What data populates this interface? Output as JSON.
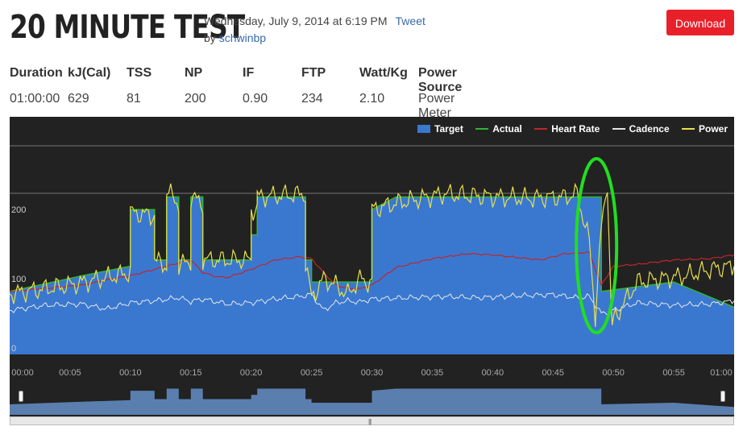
{
  "header": {
    "title": "20 MINUTE TEST",
    "date": "Wednesday, July 9, 2014 at 6:19 PM",
    "tweet": "Tweet",
    "by": "by ",
    "author": "schwinbp",
    "download": "Download"
  },
  "stats": {
    "headers": [
      "Duration",
      "kJ(Cal)",
      "TSS",
      "NP",
      "IF",
      "FTP",
      "Watt/Kg",
      "Power Source"
    ],
    "values": [
      "01:00:00",
      "629",
      "81",
      "200",
      "0.90",
      "234",
      "2.10",
      "Power Meter Bluetooth"
    ]
  },
  "chart_data": {
    "type": "area",
    "legend": [
      "Target",
      "Actual",
      "Heart Rate",
      "Cadence",
      "Power"
    ],
    "y_labels": [
      "200",
      "100",
      "0"
    ],
    "ylim": [
      0,
      330
    ],
    "xlim": [
      0,
      60
    ],
    "x_ticks": [
      "00:00",
      "00:05",
      "00:10",
      "00:15",
      "00:20",
      "00:25",
      "00:30",
      "00:35",
      "00:40",
      "00:45",
      "00:50",
      "00:55",
      "01:00"
    ],
    "colors": {
      "target": "#3a78d0",
      "actual": "#2fb52f",
      "heart_rate": "#c0262a",
      "cadence": "#e6e6e6",
      "power": "#e8e04a",
      "annotation": "#22dd22"
    },
    "target": {
      "x": [
        0,
        6,
        10,
        10,
        12,
        12,
        13,
        13,
        14,
        14,
        15,
        15,
        16,
        16,
        20,
        20,
        20.5,
        20.5,
        24.5,
        24.5,
        25,
        25,
        30,
        30,
        32,
        49,
        49,
        55,
        60
      ],
      "y": [
        100,
        125,
        140,
        230,
        230,
        150,
        150,
        250,
        250,
        150,
        150,
        250,
        250,
        150,
        150,
        190,
        190,
        250,
        250,
        150,
        150,
        115,
        115,
        230,
        250,
        250,
        100,
        115,
        75
      ]
    },
    "heart_rate": {
      "x": [
        0,
        3,
        6,
        8,
        10,
        12,
        14,
        15,
        16,
        17,
        18,
        20,
        22,
        24,
        25,
        26,
        27,
        28,
        29,
        30,
        32,
        35,
        38,
        40,
        44,
        46,
        48,
        49,
        50,
        52,
        55,
        58,
        60
      ],
      "y": [
        100,
        105,
        110,
        118,
        125,
        135,
        145,
        150,
        130,
        124,
        122,
        135,
        150,
        155,
        152,
        130,
        110,
        105,
        104,
        110,
        138,
        152,
        160,
        158,
        150,
        160,
        162,
        110,
        140,
        143,
        150,
        152,
        158
      ]
    },
    "cadence": {
      "x": [
        0,
        3,
        6,
        8,
        10,
        12,
        14,
        15,
        16,
        18,
        20,
        22,
        24,
        25,
        26,
        27,
        28,
        29,
        30,
        33,
        36,
        39,
        42,
        45,
        47,
        48,
        49,
        50,
        52,
        55,
        58,
        60
      ],
      "y": [
        70,
        78,
        80,
        72,
        82,
        85,
        90,
        84,
        88,
        80,
        82,
        88,
        92,
        95,
        70,
        82,
        85,
        83,
        88,
        90,
        92,
        90,
        93,
        95,
        90,
        92,
        65,
        70,
        82,
        78,
        80,
        85
      ]
    },
    "power_segments": [
      [
        0,
        96
      ],
      [
        5,
        110
      ],
      [
        10,
        130
      ],
      [
        10,
        225
      ],
      [
        12,
        220
      ],
      [
        12,
        150
      ],
      [
        13,
        140
      ],
      [
        13,
        260
      ],
      [
        14,
        240
      ],
      [
        14,
        140
      ],
      [
        15,
        150
      ],
      [
        15,
        250
      ],
      [
        16,
        240
      ],
      [
        16,
        150
      ],
      [
        20,
        150
      ],
      [
        20,
        230
      ],
      [
        20.5,
        230
      ],
      [
        20.5,
        250
      ],
      [
        24.5,
        255
      ],
      [
        24.5,
        145
      ],
      [
        25,
        90
      ],
      [
        26,
        120
      ],
      [
        27,
        110
      ],
      [
        28,
        95
      ],
      [
        29,
        120
      ],
      [
        30,
        112
      ],
      [
        30,
        230
      ],
      [
        32,
        240
      ],
      [
        36,
        255
      ],
      [
        40,
        250
      ],
      [
        43,
        248
      ],
      [
        46,
        250
      ],
      [
        47,
        255
      ],
      [
        48,
        180
      ],
      [
        48.5,
        60
      ],
      [
        49,
        200
      ],
      [
        49.5,
        275
      ],
      [
        49.8,
        70
      ],
      [
        50,
        55
      ],
      [
        52,
        115
      ],
      [
        54,
        120
      ],
      [
        56,
        125
      ],
      [
        58,
        135
      ],
      [
        60,
        140
      ]
    ]
  }
}
